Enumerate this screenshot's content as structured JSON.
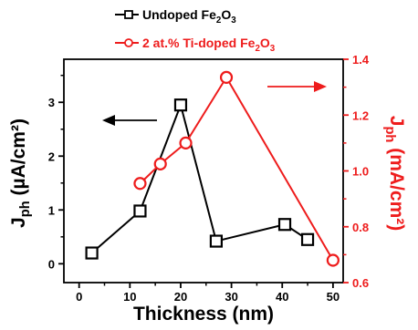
{
  "chart_data": {
    "type": "line",
    "xlabel": "Thickness (nm)",
    "ylabel_left": {
      "main": "J",
      "sub": "ph",
      "unit": " (µA/cm²)"
    },
    "ylabel_right": {
      "main": "J",
      "sub": "ph",
      "unit": " (mA/cm²)"
    },
    "xlim": [
      -3,
      52
    ],
    "ylim_left": [
      -0.35,
      3.8
    ],
    "ylim_right": [
      0.6,
      1.4
    ],
    "x_ticks": [
      "0",
      "10",
      "20",
      "30",
      "40",
      "50"
    ],
    "y_left_ticks": [
      "0",
      "1",
      "2",
      "3"
    ],
    "y_right_ticks": [
      "0.6",
      "0.8",
      "1.0",
      "1.2",
      "1.4"
    ],
    "series": [
      {
        "name": {
          "prefix": "Undoped Fe",
          "sub1": "2",
          "mid": "O",
          "sub2": "3"
        },
        "axis": "left",
        "color": "#000000",
        "marker": "square",
        "x": [
          2.5,
          12,
          20,
          27,
          40.5,
          45
        ],
        "y": [
          0.2,
          0.98,
          2.95,
          0.42,
          0.73,
          0.45
        ]
      },
      {
        "name": {
          "prefix": "2 at.% Ti-doped Fe",
          "sub1": "2",
          "mid": "O",
          "sub2": "3"
        },
        "axis": "right",
        "color": "#ee1c1c",
        "marker": "circle",
        "x": [
          12,
          16,
          21,
          29,
          50
        ],
        "y": [
          0.955,
          1.025,
          1.1,
          1.335,
          0.68
        ]
      }
    ],
    "annotations": [
      {
        "type": "arrow",
        "direction": "left",
        "color": "#000000",
        "refers_to": "left-axis"
      },
      {
        "type": "arrow",
        "direction": "right",
        "color": "#ee1c1c",
        "refers_to": "right-axis"
      }
    ],
    "legend_position": "top-center",
    "grid": false
  }
}
